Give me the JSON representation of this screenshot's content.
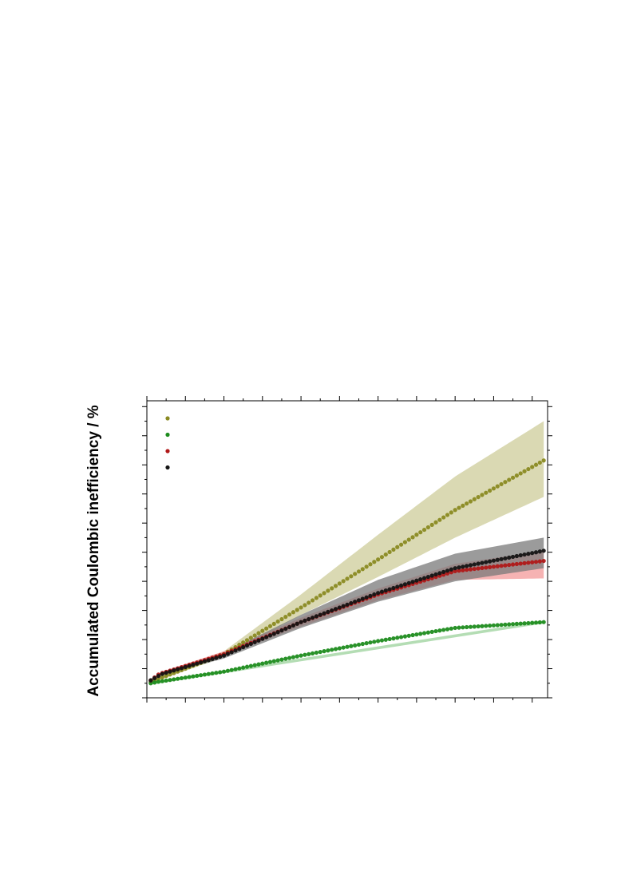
{
  "chart_data": {
    "type": "scatter",
    "title": "",
    "xlabel": "",
    "ylabel": "Accumulated Coulombic inefficiency / %",
    "xlim": [
      0,
      104
    ],
    "ylim": [
      0,
      10.2
    ],
    "tick_labels_visible": false,
    "grid": false,
    "legend_position": "top-left",
    "legend_labels_visible": false,
    "series": [
      {
        "color": "#8a8a22",
        "band_color": "#cdcc99",
        "x_range": [
          1,
          103
        ],
        "points": [
          [
            1,
            0.55
          ],
          [
            20,
            1.5
          ],
          [
            40,
            3.1
          ],
          [
            60,
            4.75
          ],
          [
            80,
            6.45
          ],
          [
            103,
            8.15
          ]
        ],
        "band_upper": [
          [
            1,
            0.65
          ],
          [
            20,
            1.6
          ],
          [
            40,
            3.55
          ],
          [
            60,
            5.6
          ],
          [
            80,
            7.6
          ],
          [
            103,
            9.5
          ]
        ],
        "band_lower": [
          [
            1,
            0.5
          ],
          [
            20,
            1.4
          ],
          [
            40,
            2.85
          ],
          [
            60,
            4.15
          ],
          [
            80,
            5.5
          ],
          [
            103,
            6.9
          ]
        ]
      },
      {
        "color": "#1e8c1e",
        "band_color": "#9bd29b",
        "x_range": [
          1,
          103
        ],
        "points": [
          [
            1,
            0.5
          ],
          [
            3,
            0.55
          ],
          [
            20,
            0.9
          ],
          [
            40,
            1.45
          ],
          [
            60,
            1.95
          ],
          [
            80,
            2.4
          ],
          [
            103,
            2.6
          ]
        ],
        "band_upper": [
          [
            1,
            0.55
          ],
          [
            103,
            2.65
          ]
        ],
        "band_lower": [
          [
            1,
            0.45
          ],
          [
            103,
            2.55
          ]
        ]
      },
      {
        "color": "#b01818",
        "band_color": "#f39a9a",
        "x_range": [
          1,
          103
        ],
        "points": [
          [
            1,
            0.6
          ],
          [
            3,
            0.8
          ],
          [
            4,
            0.85
          ],
          [
            20,
            1.5
          ],
          [
            40,
            2.6
          ],
          [
            60,
            3.55
          ],
          [
            80,
            4.35
          ],
          [
            103,
            4.7
          ]
        ],
        "band_upper": [
          [
            1,
            0.65
          ],
          [
            4,
            0.9
          ],
          [
            20,
            1.6
          ],
          [
            40,
            2.75
          ],
          [
            60,
            3.75
          ],
          [
            80,
            4.6
          ],
          [
            103,
            5.05
          ]
        ],
        "band_lower": [
          [
            1,
            0.55
          ],
          [
            4,
            0.8
          ],
          [
            20,
            1.45
          ],
          [
            40,
            2.45
          ],
          [
            60,
            3.35
          ],
          [
            80,
            4.05
          ],
          [
            103,
            4.1
          ]
        ]
      },
      {
        "color": "#141414",
        "band_color": "#7a7a7a",
        "x_range": [
          1,
          103
        ],
        "points": [
          [
            1,
            0.6
          ],
          [
            3,
            0.75
          ],
          [
            4,
            0.82
          ],
          [
            20,
            1.45
          ],
          [
            40,
            2.6
          ],
          [
            60,
            3.6
          ],
          [
            80,
            4.45
          ],
          [
            103,
            5.05
          ]
        ],
        "band_upper": [
          [
            1,
            0.65
          ],
          [
            4,
            0.88
          ],
          [
            20,
            1.55
          ],
          [
            40,
            2.85
          ],
          [
            60,
            4.05
          ],
          [
            80,
            4.95
          ],
          [
            103,
            5.5
          ]
        ],
        "band_lower": [
          [
            1,
            0.55
          ],
          [
            4,
            0.78
          ],
          [
            20,
            1.35
          ],
          [
            40,
            2.4
          ],
          [
            60,
            3.3
          ],
          [
            80,
            4.0
          ],
          [
            103,
            4.45
          ]
        ]
      }
    ]
  }
}
